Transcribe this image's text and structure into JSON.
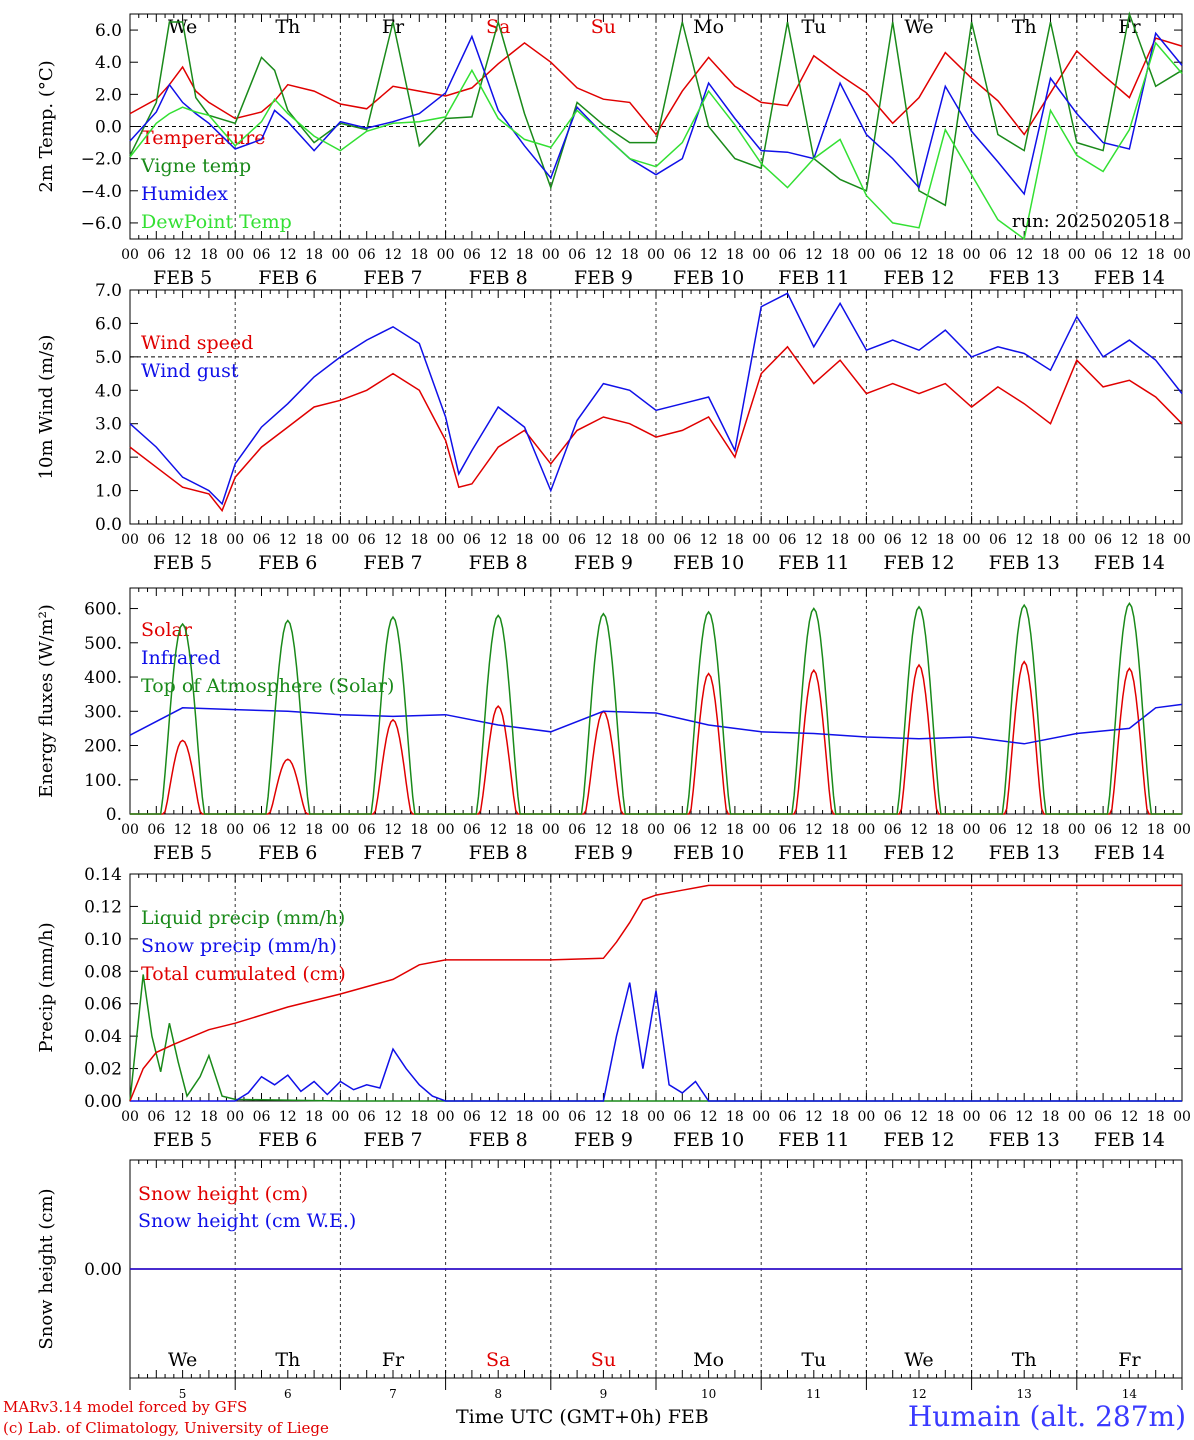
{
  "colors": {
    "red": "#e00000",
    "green": "#1a8a1a",
    "blue": "#1010e8",
    "lightgreen": "#33e033",
    "weekend": "#e00000"
  },
  "days": [
    {
      "abbr": "We",
      "date": "FEB  5",
      "num": "5",
      "weekend": false
    },
    {
      "abbr": "Th",
      "date": "FEB  6",
      "num": "6",
      "weekend": false
    },
    {
      "abbr": "Fr",
      "date": "FEB  7",
      "num": "7",
      "weekend": false
    },
    {
      "abbr": "Sa",
      "date": "FEB  8",
      "num": "8",
      "weekend": true
    },
    {
      "abbr": "Su",
      "date": "FEB  9",
      "num": "9",
      "weekend": true
    },
    {
      "abbr": "Mo",
      "date": "FEB 10",
      "num": "10",
      "weekend": false
    },
    {
      "abbr": "Tu",
      "date": "FEB 11",
      "num": "11",
      "weekend": false
    },
    {
      "abbr": "We",
      "date": "FEB 12",
      "num": "12",
      "weekend": false
    },
    {
      "abbr": "Th",
      "date": "FEB 13",
      "num": "13",
      "weekend": false
    },
    {
      "abbr": "Fr",
      "date": "FEB 14",
      "num": "14",
      "weekend": false
    }
  ],
  "hour_ticks": [
    "00",
    "06",
    "12",
    "18"
  ],
  "footer": {
    "model": "MARv3.14 model forced by GFS",
    "lab": "(c) Lab. of Climatology, University of Liege",
    "xlabel": "Time UTC (GMT+0h) FEB",
    "station": "Humain (alt. 287m)"
  },
  "chart_data": [
    {
      "type": "line",
      "ylabel": "2m Temp. (°C)",
      "ylim": [
        -7.0,
        7.0
      ],
      "yticks": [
        -6,
        -4,
        -2,
        0,
        2,
        4,
        6
      ],
      "ytick_labels": [
        "−6.0",
        "−4.0",
        "−2.0",
        "0.0",
        "2.0",
        "4.0",
        "6.0"
      ],
      "day_labels_top": true,
      "annotation": "run: 2025020518",
      "x_unit": "hours since FEB 5 00 UTC",
      "series": [
        {
          "name": "Temperature",
          "color": "red",
          "x": [
            0,
            6,
            9,
            12,
            15,
            18,
            24,
            30,
            33,
            36,
            42,
            48,
            54,
            60,
            66,
            72,
            78,
            84,
            90,
            96,
            102,
            108,
            114,
            120,
            126,
            132,
            138,
            144,
            150,
            156,
            162,
            168,
            174,
            180,
            186,
            192,
            198,
            204,
            210,
            216,
            222,
            228,
            234,
            240
          ],
          "y": [
            0.8,
            1.7,
            2.6,
            3.7,
            2.2,
            1.5,
            0.5,
            0.9,
            1.6,
            2.6,
            2.2,
            1.4,
            1.1,
            2.5,
            2.2,
            1.9,
            2.4,
            3.9,
            5.2,
            4.0,
            2.4,
            1.7,
            1.5,
            -0.5,
            2.2,
            4.3,
            2.5,
            1.5,
            1.3,
            4.4,
            3.2,
            2.1,
            0.2,
            1.8,
            4.6,
            3.0,
            1.6,
            -0.5,
            2.1,
            4.7,
            3.2,
            1.8,
            5.5,
            5.0
          ]
        },
        {
          "name": "Vigne temp",
          "color": "green",
          "x": [
            0,
            6,
            9,
            12,
            15,
            18,
            24,
            30,
            33,
            36,
            42,
            48,
            54,
            60,
            66,
            72,
            78,
            84,
            90,
            96,
            102,
            108,
            114,
            120,
            126,
            132,
            138,
            144,
            150,
            156,
            162,
            168,
            174,
            180,
            186,
            192,
            198,
            204,
            210,
            216,
            222,
            228,
            234,
            240
          ],
          "y": [
            -1.8,
            1.5,
            6.5,
            6.5,
            1.8,
            0.7,
            0.2,
            4.3,
            3.5,
            1.0,
            -1.0,
            0.2,
            -0.2,
            6.5,
            -1.2,
            0.5,
            0.6,
            6.5,
            0.8,
            -3.8,
            1.5,
            0.1,
            -1.0,
            -1.0,
            6.5,
            0.0,
            -2.0,
            -2.6,
            6.5,
            -2.0,
            -3.3,
            -4.0,
            6.5,
            -4.0,
            -4.9,
            6.5,
            -0.5,
            -1.5,
            6.5,
            -1.0,
            -1.5,
            7.0,
            2.5,
            3.5
          ]
        },
        {
          "name": "Humidex",
          "color": "blue",
          "x": [
            0,
            6,
            9,
            12,
            15,
            18,
            24,
            30,
            33,
            36,
            42,
            48,
            54,
            60,
            66,
            72,
            78,
            84,
            90,
            96,
            102,
            108,
            114,
            120,
            126,
            132,
            138,
            144,
            150,
            156,
            162,
            168,
            174,
            180,
            186,
            192,
            198,
            204,
            210,
            216,
            222,
            228,
            234,
            240
          ],
          "y": [
            -0.9,
            0.9,
            2.6,
            1.5,
            0.8,
            0.2,
            -1.4,
            -0.8,
            1.0,
            0.3,
            -1.5,
            0.3,
            -0.1,
            0.3,
            0.8,
            2.1,
            5.6,
            1.0,
            -1.2,
            -3.2,
            1.2,
            -0.5,
            -2.0,
            -3.0,
            -2.0,
            2.7,
            0.5,
            -1.5,
            -1.6,
            -2.0,
            2.7,
            -0.5,
            -2.0,
            -3.8,
            2.5,
            -0.3,
            -2.2,
            -4.2,
            3.0,
            0.8,
            -1.0,
            -1.4,
            5.8,
            3.8
          ]
        },
        {
          "name": "DewPoint Temp",
          "color": "lightgreen",
          "x": [
            0,
            6,
            9,
            12,
            15,
            18,
            24,
            30,
            33,
            36,
            42,
            48,
            54,
            60,
            66,
            72,
            78,
            84,
            90,
            96,
            102,
            108,
            114,
            120,
            126,
            132,
            138,
            144,
            150,
            156,
            162,
            168,
            174,
            180,
            186,
            192,
            198,
            204,
            210,
            216,
            222,
            228,
            234,
            240
          ],
          "y": [
            -1.9,
            0.2,
            0.8,
            1.2,
            0.9,
            0.7,
            -1.2,
            0.3,
            1.7,
            0.8,
            -0.6,
            -1.5,
            -0.3,
            0.2,
            0.3,
            0.6,
            3.5,
            0.5,
            -0.8,
            -1.3,
            1.0,
            -0.5,
            -2.0,
            -2.5,
            -1.0,
            2.2,
            0.1,
            -2.3,
            -3.8,
            -2.0,
            -0.8,
            -4.3,
            -6.0,
            -6.3,
            -0.2,
            -3.0,
            -5.8,
            -7.0,
            1.0,
            -1.8,
            -2.8,
            -0.2,
            5.2,
            3.3
          ]
        }
      ]
    },
    {
      "type": "line",
      "ylabel": "10m Wind (m/s)",
      "ylim": [
        0,
        7.0
      ],
      "yticks": [
        0,
        1,
        2,
        3,
        4,
        5,
        6,
        7
      ],
      "ytick_labels": [
        "0.0",
        "1.0",
        "2.0",
        "3.0",
        "4.0",
        "5.0",
        "6.0",
        "7.0"
      ],
      "hline": 5.0,
      "x_unit": "hours since FEB 5 00 UTC",
      "series": [
        {
          "name": "Wind speed",
          "color": "red",
          "x": [
            0,
            6,
            12,
            18,
            21,
            24,
            30,
            36,
            42,
            48,
            54,
            60,
            66,
            72,
            75,
            78,
            84,
            90,
            96,
            102,
            108,
            114,
            120,
            126,
            132,
            138,
            144,
            150,
            156,
            162,
            168,
            174,
            180,
            186,
            192,
            198,
            204,
            210,
            216,
            222,
            228,
            234,
            240
          ],
          "y": [
            2.3,
            1.7,
            1.1,
            0.9,
            0.4,
            1.4,
            2.3,
            2.9,
            3.5,
            3.7,
            4.0,
            4.5,
            4.0,
            2.5,
            1.1,
            1.2,
            2.3,
            2.8,
            1.8,
            2.8,
            3.2,
            3.0,
            2.6,
            2.8,
            3.2,
            2.0,
            4.5,
            5.3,
            4.2,
            4.9,
            3.9,
            4.2,
            3.9,
            4.2,
            3.5,
            4.1,
            3.6,
            3.0,
            4.9,
            4.1,
            4.3,
            3.8,
            3.0
          ]
        },
        {
          "name": "Wind gust",
          "color": "blue",
          "x": [
            0,
            6,
            12,
            18,
            21,
            24,
            30,
            36,
            42,
            48,
            54,
            60,
            66,
            72,
            75,
            78,
            84,
            90,
            96,
            102,
            108,
            114,
            120,
            126,
            132,
            138,
            144,
            150,
            156,
            162,
            168,
            174,
            180,
            186,
            192,
            198,
            204,
            210,
            216,
            222,
            228,
            234,
            240
          ],
          "y": [
            3.0,
            2.3,
            1.4,
            1.0,
            0.6,
            1.8,
            2.9,
            3.6,
            4.4,
            5.0,
            5.5,
            5.9,
            5.4,
            3.2,
            1.5,
            2.2,
            3.5,
            2.9,
            1.0,
            3.1,
            4.2,
            4.0,
            3.4,
            3.6,
            3.8,
            2.2,
            6.5,
            6.9,
            5.3,
            6.6,
            5.2,
            5.5,
            5.2,
            5.8,
            5.0,
            5.3,
            5.1,
            4.6,
            6.2,
            5.0,
            5.5,
            4.9,
            3.9
          ]
        }
      ]
    },
    {
      "type": "line",
      "ylabel": "Energy fluxes (W/m²)",
      "ylim": [
        0,
        660
      ],
      "yticks": [
        0,
        100,
        200,
        300,
        400,
        500,
        600
      ],
      "ytick_labels": [
        "0.",
        "100.",
        "200.",
        "300.",
        "400.",
        "500.",
        "600."
      ],
      "x_unit": "hours since FEB 5 00 UTC",
      "series": [
        {
          "name": "Solar",
          "color": "red",
          "day_peaks": [
            215,
            160,
            275,
            315,
            300,
            410,
            420,
            435,
            445,
            425
          ]
        },
        {
          "name": "Infrared",
          "color": "blue",
          "x": [
            0,
            12,
            24,
            36,
            48,
            60,
            72,
            84,
            96,
            108,
            120,
            132,
            144,
            156,
            168,
            180,
            192,
            204,
            216,
            228,
            234,
            240
          ],
          "y": [
            230,
            310,
            305,
            300,
            290,
            285,
            290,
            260,
            240,
            300,
            295,
            260,
            240,
            235,
            225,
            220,
            225,
            205,
            235,
            250,
            310,
            320
          ]
        },
        {
          "name": "Top of Atmosphere (Solar)",
          "color": "green",
          "day_peaks": [
            555,
            565,
            575,
            580,
            585,
            590,
            600,
            605,
            610,
            615
          ]
        }
      ]
    },
    {
      "type": "line",
      "ylabel": "Precip (mm/h)",
      "ylim": [
        0,
        0.14
      ],
      "yticks": [
        0,
        0.02,
        0.04,
        0.06,
        0.08,
        0.1,
        0.12,
        0.14
      ],
      "ytick_labels": [
        "0.00",
        "0.02",
        "0.04",
        "0.06",
        "0.08",
        "0.10",
        "0.12",
        "0.14"
      ],
      "x_unit": "hours since FEB 5 00 UTC",
      "series": [
        {
          "name": "Liquid precip (mm/h)",
          "color": "green",
          "x": [
            0,
            3,
            5,
            7,
            9,
            11,
            13,
            16,
            18,
            21,
            24,
            48,
            120,
            240
          ],
          "y": [
            0,
            0.078,
            0.04,
            0.018,
            0.048,
            0.024,
            0.003,
            0.015,
            0.028,
            0.003,
            0.001,
            0,
            0,
            0
          ]
        },
        {
          "name": "Snow precip (mm/h)",
          "color": "blue",
          "x": [
            0,
            24,
            27,
            30,
            33,
            36,
            39,
            42,
            45,
            48,
            51,
            54,
            57,
            60,
            63,
            66,
            69,
            72,
            96,
            108,
            111,
            114,
            117,
            120,
            123,
            126,
            129,
            132,
            240
          ],
          "y": [
            0,
            0,
            0.005,
            0.015,
            0.01,
            0.016,
            0.006,
            0.012,
            0.004,
            0.012,
            0.007,
            0.01,
            0.008,
            0.032,
            0.02,
            0.01,
            0.003,
            0,
            0,
            0,
            0.04,
            0.073,
            0.02,
            0.068,
            0.01,
            0.005,
            0.012,
            0,
            0
          ]
        },
        {
          "name": "Total cumulated (cm)",
          "color": "red",
          "x": [
            0,
            3,
            6,
            10,
            18,
            24,
            36,
            48,
            60,
            66,
            72,
            84,
            96,
            108,
            111,
            114,
            117,
            120,
            126,
            132,
            240
          ],
          "y": [
            0,
            0.02,
            0.03,
            0.035,
            0.044,
            0.048,
            0.058,
            0.066,
            0.075,
            0.084,
            0.087,
            0.087,
            0.087,
            0.088,
            0.098,
            0.11,
            0.124,
            0.127,
            0.13,
            0.133,
            0.133
          ]
        }
      ]
    },
    {
      "type": "line",
      "ylabel": "Snow height (cm)",
      "ylim": [
        -1,
        1
      ],
      "yticks": [
        0
      ],
      "ytick_labels": [
        "0.00"
      ],
      "day_labels_bottom": true,
      "x_unit": "hours since FEB 5 00 UTC",
      "series": [
        {
          "name": "Snow height (cm)",
          "color": "red",
          "x": [
            0,
            240
          ],
          "y": [
            0,
            0
          ]
        },
        {
          "name": "Snow height (cm W.E.)",
          "color": "blue",
          "x": [
            0,
            240
          ],
          "y": [
            0,
            0
          ]
        }
      ]
    }
  ]
}
